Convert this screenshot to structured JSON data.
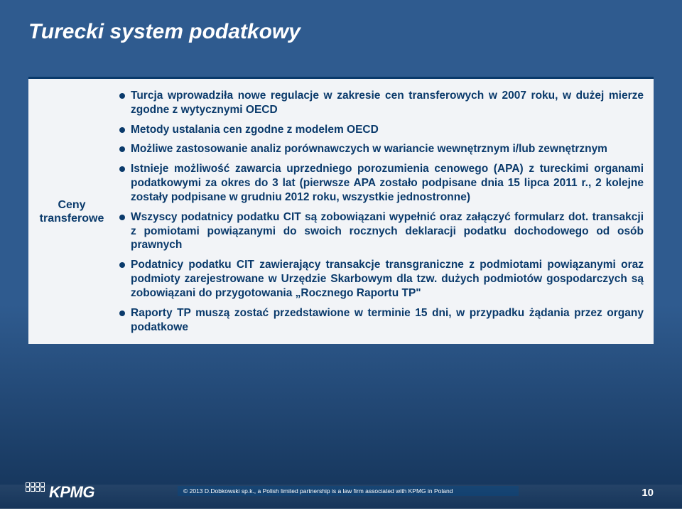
{
  "colors": {
    "bg_top": "#2f5b8f",
    "bg_bottom": "#143358",
    "title": "#ffffff",
    "box_bg": "#f2f4f7",
    "accent": "#0a3a6b",
    "text": "#0a3a6b"
  },
  "title": "Turecki system podatkowy",
  "section_label": "Ceny transferowe",
  "bullets": [
    "Turcja wprowadziła nowe regulacje w zakresie cen transferowych w 2007 roku, w dużej mierze zgodne z wytycznymi OECD",
    "Metody ustalania cen zgodne z modelem OECD",
    "Możliwe zastosowanie analiz porównawczych w wariancie wewnętrznym i/lub zewnętrznym",
    "Istnieje możliwość zawarcia uprzedniego porozumienia cenowego (APA) z tureckimi organami podatkowymi za okres do 3 lat (pierwsze APA zostało podpisane dnia 15 lipca 2011 r., 2 kolejne zostały podpisane w grudniu 2012 roku, wszystkie jednostronne)",
    "Wszyscy podatnicy podatku CIT są zobowiązani wypełnić oraz załączyć formularz dot. transakcji z pomiotami powiązanymi do swoich rocznych deklaracji podatku dochodowego od osób prawnych",
    "Podatnicy podatku CIT zawierający transakcje transgraniczne z podmiotami powiązanymi oraz podmioty zarejestrowane  w Urzędzie Skarbowym dla tzw. dużych podmiotów gospodarczych są zobowiązani do przygotowania „Rocznego Raportu TP\"",
    "Raporty TP muszą zostać przedstawione w terminie 15 dni, w przypadku żądania przez organy podatkowe"
  ],
  "footer": {
    "logo_text": "KPMG",
    "copyright": "© 2013 D.Dobkowski sp.k., a Polish limited partnership is a law firm associated with KPMG in Poland",
    "page_number": "10"
  }
}
